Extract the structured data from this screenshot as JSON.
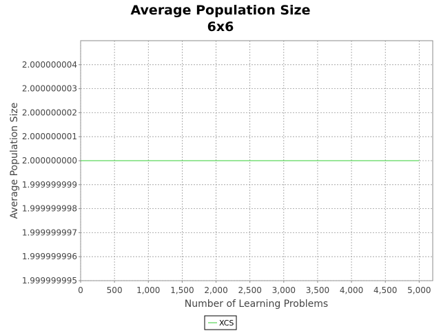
{
  "chart_data": {
    "type": "line",
    "title": "Average Population Size",
    "subtitle": "6x6",
    "xlabel": "Number of Learning Problems",
    "ylabel": "Average Population Size",
    "xlim": [
      0,
      5200
    ],
    "ylim": [
      1.999999995,
      2.000000005
    ],
    "x_ticks": [
      0,
      500,
      1000,
      1500,
      2000,
      2500,
      3000,
      3500,
      4000,
      4500,
      5000
    ],
    "x_tick_labels": [
      "0",
      "500",
      "1,000",
      "1,500",
      "2,000",
      "2,500",
      "3,000",
      "3,500",
      "4,000",
      "4,500",
      "5,000"
    ],
    "y_ticks": [
      1.999999995,
      1.999999996,
      1.999999997,
      1.999999998,
      1.999999999,
      2.0,
      2.000000001,
      2.000000002,
      2.000000003,
      2.000000004
    ],
    "y_tick_labels": [
      "1.999999995",
      "1.999999996",
      "1.999999997",
      "1.999999998",
      "1.999999999",
      "2.000000000",
      "2.000000001",
      "2.000000002",
      "2.000000003",
      "2.000000004"
    ],
    "grid": true,
    "legend_position": "bottom",
    "series": [
      {
        "name": "XCS",
        "color": "#33cc33",
        "x": [
          0,
          5000
        ],
        "y": [
          2.0,
          2.0
        ]
      }
    ]
  }
}
